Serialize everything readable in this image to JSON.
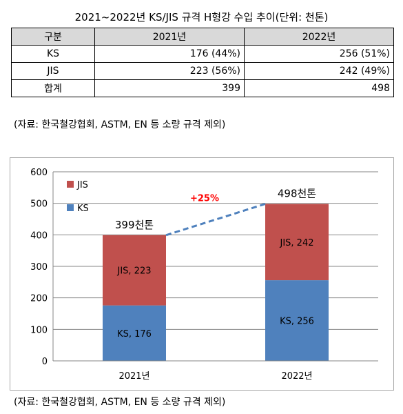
{
  "table": {
    "title": "2021~2022년 KS/JIS 규격 H형강 수입 추이(단위: 천톤)",
    "headers": [
      "구분",
      "2021년",
      "2022년"
    ],
    "rows": [
      {
        "label": "KS",
        "v2021": "176 (44%)",
        "v2022": "256 (51%)"
      },
      {
        "label": "JIS",
        "v2021": "223 (56%)",
        "v2022": "242 (49%)"
      },
      {
        "label": "합계",
        "v2021": "399",
        "v2022": "498"
      }
    ],
    "source": "(자료: 한국철강협회, ASTM, EN 등 소량 규격 제외)"
  },
  "chart_data": {
    "type": "bar",
    "stacked": true,
    "categories": [
      "2021년",
      "2022년"
    ],
    "series": [
      {
        "name": "KS",
        "values": [
          176,
          256
        ],
        "color": "#4f81bd",
        "labels": [
          "KS, 176",
          "KS, 256"
        ]
      },
      {
        "name": "JIS",
        "values": [
          223,
          242
        ],
        "color": "#c0504d",
        "labels": [
          "JIS, 223",
          "JIS, 242"
        ]
      }
    ],
    "totals": [
      399,
      498
    ],
    "total_labels": [
      "399천톤",
      "498천톤"
    ],
    "change_label": "+25%",
    "change_color": "#ff0000",
    "trend_line_color": "#4f81bd",
    "ylim": [
      0,
      600
    ],
    "yticks": [
      0,
      100,
      200,
      300,
      400,
      500,
      600
    ],
    "grid": true,
    "legend": {
      "placement": "top-left",
      "entries": [
        "JIS",
        "KS"
      ]
    }
  },
  "source": "(자료: 한국철강협회, ASTM, EN 등 소량 규격 제외)"
}
